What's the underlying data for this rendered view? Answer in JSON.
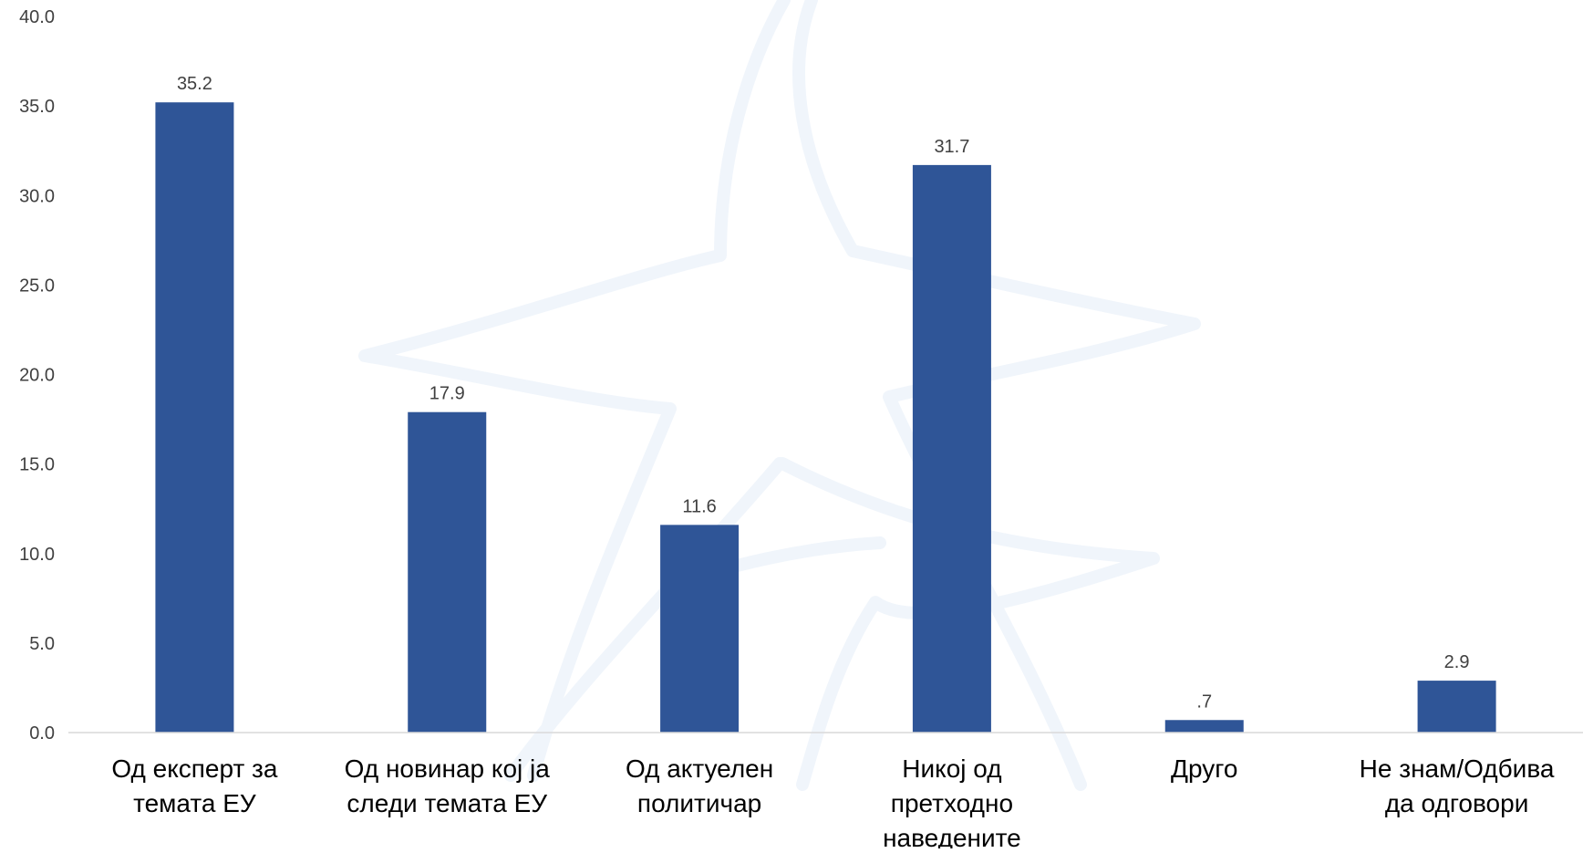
{
  "chart_data": {
    "type": "bar",
    "categories": [
      [
        "Од експерт за",
        "темата ЕУ"
      ],
      [
        "Од новинар кој ја",
        "следи темата ЕУ"
      ],
      [
        "Од актуелен",
        "политичар"
      ],
      [
        "Никој од",
        "претходно",
        "наведените"
      ],
      [
        "Друго"
      ],
      [
        "Не знам/Одбива",
        "да одговори"
      ]
    ],
    "values": [
      35.2,
      17.9,
      11.6,
      31.7,
      0.7,
      2.9
    ],
    "data_labels": [
      "35.2",
      "17.9",
      "11.6",
      "31.7",
      ".7",
      "2.9"
    ],
    "ylim": [
      0,
      40
    ],
    "yticks": [
      "0.0",
      "5.0",
      "10.0",
      "15.0",
      "20.0",
      "25.0",
      "30.0",
      "35.0",
      "40.0"
    ],
    "title": "",
    "xlabel": "",
    "ylabel": "",
    "grid": false,
    "colors": {
      "bar": "#2F5597",
      "axis": "#D9D9D9",
      "watermark": "#F0F5FB"
    }
  }
}
